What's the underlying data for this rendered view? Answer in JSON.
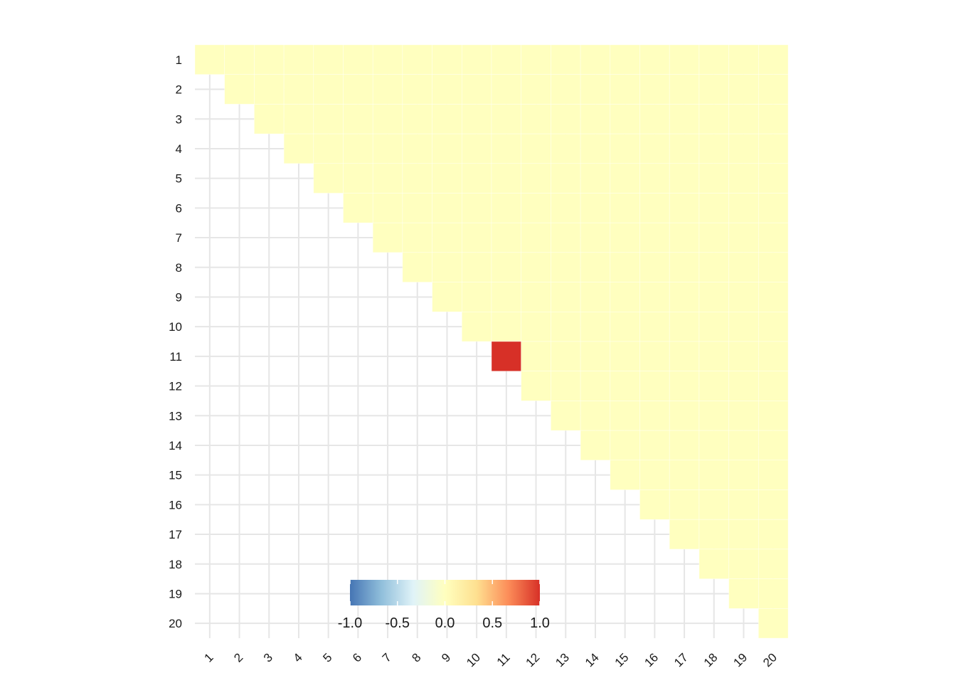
{
  "chart_data": {
    "type": "heatmap",
    "title": "",
    "xlabel": "",
    "ylabel": "",
    "x_categories": [
      "1",
      "2",
      "3",
      "4",
      "5",
      "6",
      "7",
      "8",
      "9",
      "10",
      "11",
      "12",
      "13",
      "14",
      "15",
      "16",
      "17",
      "18",
      "19",
      "20"
    ],
    "y_categories": [
      "1",
      "2",
      "3",
      "4",
      "5",
      "6",
      "7",
      "8",
      "9",
      "10",
      "11",
      "12",
      "13",
      "14",
      "15",
      "16",
      "17",
      "18",
      "19",
      "20"
    ],
    "layout": "upper-triangle including diagonal (cells where column >= row)",
    "default_value": 0.0,
    "special_cells": [
      {
        "row": "11",
        "col": "11",
        "value": 1.0
      }
    ],
    "color_scale": {
      "limits": [
        -1.0,
        1.0
      ],
      "ticks": [
        "-1.0",
        "-0.5",
        "0.0",
        "0.5",
        "1.0"
      ],
      "colors": [
        "#4575b4",
        "#91bfdb",
        "#e0f3f8",
        "#ffffbf",
        "#fee090",
        "#fc8d59",
        "#d73027"
      ]
    },
    "legend_position": "bottom-center (inside plot area)",
    "grid": true
  }
}
